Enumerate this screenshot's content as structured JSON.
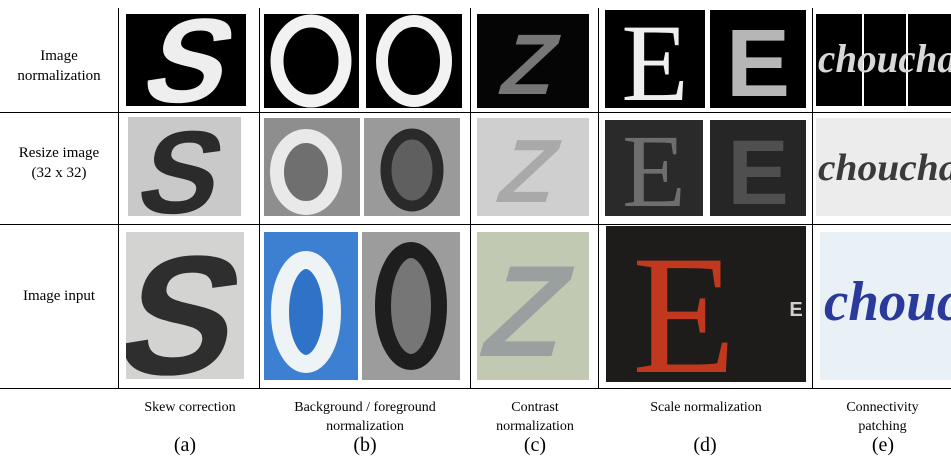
{
  "rows": {
    "normalization": "Image\nnormalization",
    "resize": "Resize image\n(32 x 32)",
    "input": "Image input"
  },
  "columns": [
    {
      "caption": "Skew correction",
      "tag": "(a)"
    },
    {
      "caption": "Background / foreground\nnormalization",
      "tag": "(b)"
    },
    {
      "caption": "Contrast\nnormalization",
      "tag": "(c)"
    },
    {
      "caption": "Scale normalization",
      "tag": "(d)"
    },
    {
      "caption": "Connectivity\npatching",
      "tag": "(e)"
    }
  ],
  "glyphs": {
    "s": "S",
    "o": "O",
    "z": "Z",
    "e": "E",
    "e_small": "E",
    "word": "chouchane"
  },
  "colors": {
    "rule": "#000000",
    "blue_bg": "#3d7fd0",
    "red_letter": "#c0391f",
    "script_blue": "#2a3a9a"
  }
}
